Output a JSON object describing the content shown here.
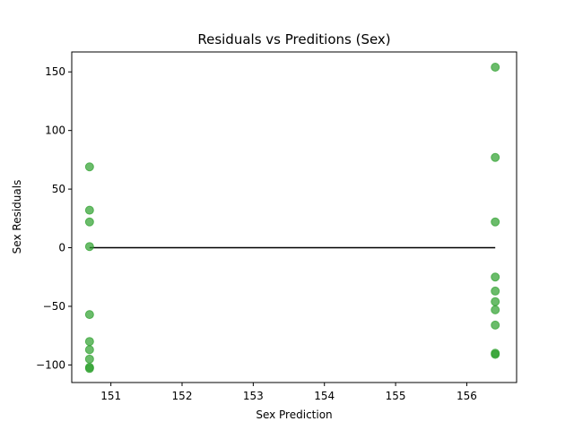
{
  "chart_data": {
    "type": "scatter",
    "title": "Residuals vs Preditions (Sex)",
    "xlabel": "Sex Prediction",
    "ylabel": "Sex Residuals",
    "xlim": [
      150.45,
      156.7
    ],
    "ylim": [
      -115,
      167
    ],
    "xticks": [
      151,
      152,
      153,
      154,
      155,
      156
    ],
    "yticks": [
      -100,
      -50,
      0,
      50,
      100,
      150
    ],
    "xtick_labels": [
      "151",
      "152",
      "153",
      "154",
      "155",
      "156"
    ],
    "ytick_labels": [
      "−100",
      "−50",
      "0",
      "50",
      "100",
      "150"
    ],
    "grid": false,
    "point_color": "#2ca02c",
    "point_alpha": 0.7,
    "line_color": "#000000",
    "series": [
      {
        "x": [
          150.7,
          150.7,
          150.7,
          150.7,
          150.7,
          150.7,
          150.7,
          150.7,
          150.7,
          150.7,
          156.4,
          156.4,
          156.4,
          156.4,
          156.4,
          156.4,
          156.4,
          156.4,
          156.4,
          156.4
        ],
        "y": [
          69,
          32,
          22,
          1,
          -57,
          -80,
          -87,
          -95,
          -102,
          -103,
          154,
          77,
          22,
          -25,
          -37,
          -46,
          -53,
          -66,
          -90,
          -91
        ]
      }
    ],
    "zero_line": {
      "x": [
        150.7,
        156.4
      ],
      "y": [
        0,
        0
      ]
    }
  }
}
